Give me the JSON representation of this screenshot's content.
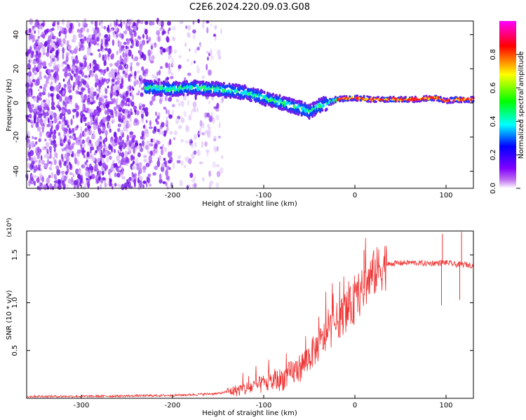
{
  "title": "C2E6.2024.220.09.03.G08",
  "chart_data": [
    {
      "type": "heatmap",
      "xlabel": "Height of straight line (km)",
      "ylabel": "Frequency (Hz)",
      "xlim": [
        -360,
        130
      ],
      "ylim": [
        -50,
        48
      ],
      "xticks": [
        -300,
        -200,
        -100,
        0,
        100
      ],
      "yticks": [
        -40,
        -20,
        0,
        20,
        40
      ],
      "colorbar": {
        "label": "Normalized spectral amplitude",
        "range": [
          0.0,
          1.0
        ],
        "ticks": [
          "0.0",
          "0.2",
          "0.4",
          "0.6",
          "0.8"
        ],
        "colormap": [
          "#ffffff",
          "#a020f0",
          "#0000ff",
          "#00ffff",
          "#00ff00",
          "#ffff00",
          "#ff0000",
          "#ff00ff"
        ]
      },
      "ridge": {
        "x": [
          -230,
          -200,
          -180,
          -150,
          -120,
          -100,
          -80,
          -60,
          -50,
          -40,
          -20,
          0,
          20,
          60,
          90,
          100,
          110,
          130
        ],
        "y": [
          9,
          8,
          9,
          8,
          6,
          3,
          0,
          -3,
          -5,
          -2,
          2,
          3,
          2,
          2,
          3,
          1,
          2,
          2
        ]
      },
      "noise_region_x": [
        -360,
        -145
      ]
    },
    {
      "type": "line",
      "xlabel": "Height of straight line (km)",
      "ylabel": "SNR (10 * v/v)",
      "y_multiplier": "(x10⁴)",
      "xlim": [
        -360,
        130
      ],
      "ylim": [
        0,
        1.75
      ],
      "xticks": [
        -300,
        -200,
        -100,
        0,
        100
      ],
      "yticks": [
        0.5,
        1.0,
        1.5
      ],
      "series": [
        {
          "color": "#ee2222",
          "x": [
            -360,
            -300,
            -200,
            -150,
            -120,
            -100,
            -80,
            -60,
            -40,
            -20,
            -10,
            0,
            10,
            20,
            30,
            40,
            60,
            80,
            100,
            110,
            120,
            130
          ],
          "y": [
            0.02,
            0.02,
            0.03,
            0.05,
            0.1,
            0.15,
            0.2,
            0.32,
            0.55,
            0.8,
            0.9,
            1.0,
            1.15,
            1.3,
            1.38,
            1.41,
            1.42,
            1.41,
            1.42,
            1.4,
            1.4,
            1.39
          ]
        }
      ],
      "spikes": [
        {
          "x": 10,
          "y": 1.55
        },
        {
          "x": 95,
          "y": 0.97
        },
        {
          "x": 96,
          "y": 1.72
        },
        {
          "x": 115,
          "y": 1.03
        },
        {
          "x": 117,
          "y": 1.74
        }
      ]
    }
  ]
}
